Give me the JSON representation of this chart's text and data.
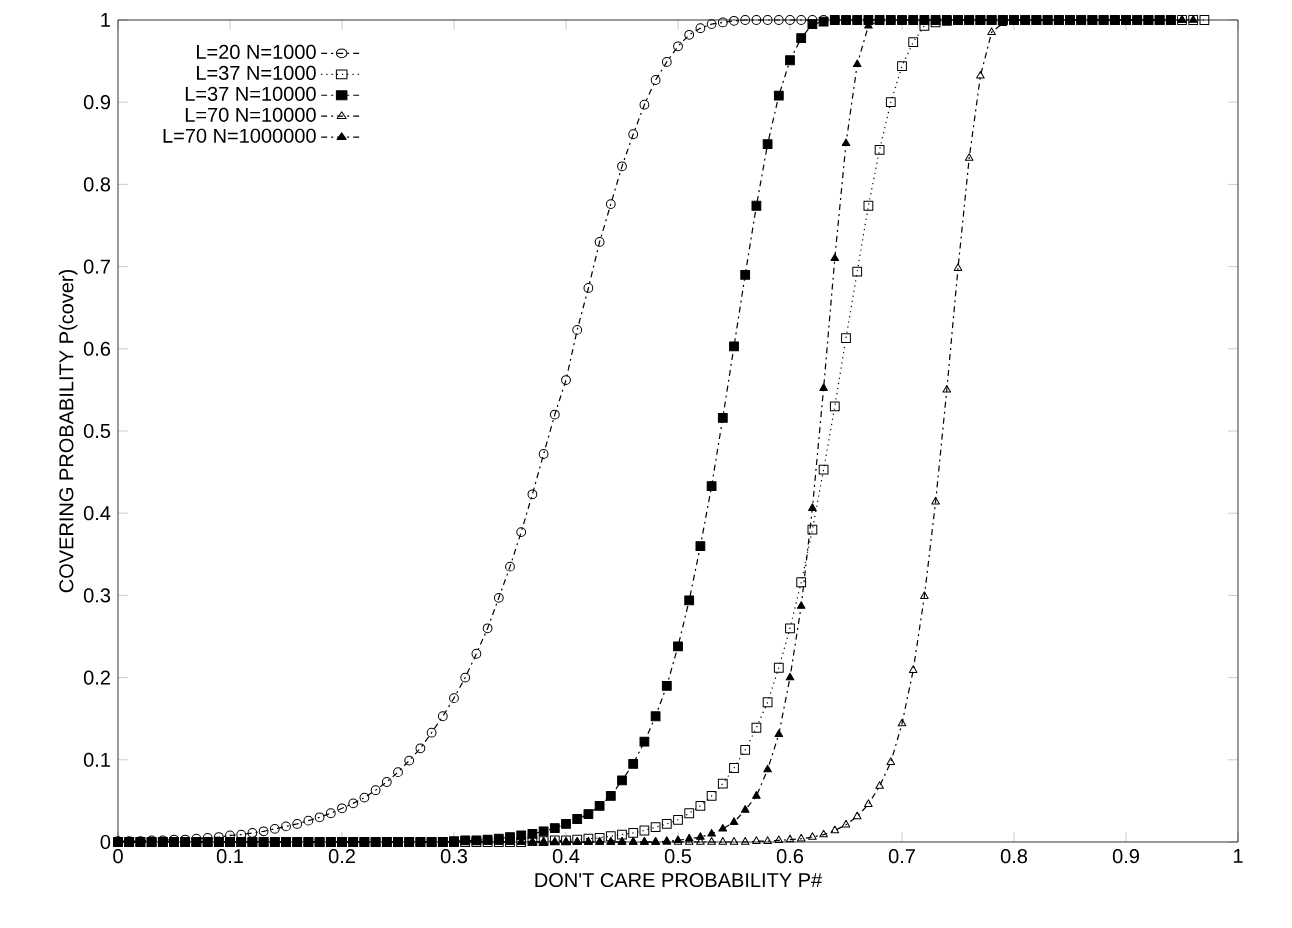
{
  "chart_data": {
    "type": "line",
    "xlabel": "DON'T CARE PROBABILITY P#",
    "ylabel": "COVERING PROBABILITY P(cover)",
    "x": [
      0,
      0.01,
      0.02,
      0.03,
      0.04,
      0.05,
      0.06,
      0.07,
      0.08,
      0.09,
      0.1,
      0.11,
      0.12,
      0.13,
      0.14,
      0.15,
      0.16,
      0.17,
      0.18,
      0.19,
      0.2,
      0.21,
      0.22,
      0.23,
      0.24,
      0.25,
      0.26,
      0.27,
      0.28,
      0.29,
      0.3,
      0.31,
      0.32,
      0.33,
      0.34,
      0.35,
      0.36,
      0.37,
      0.38,
      0.39,
      0.4,
      0.41,
      0.42,
      0.43,
      0.44,
      0.45,
      0.46,
      0.47,
      0.48,
      0.49,
      0.5,
      0.51,
      0.52,
      0.53,
      0.54,
      0.55,
      0.56,
      0.57,
      0.58,
      0.59,
      0.6,
      0.61,
      0.62,
      0.63,
      0.64,
      0.65,
      0.66,
      0.67,
      0.68,
      0.69,
      0.7,
      0.71,
      0.72,
      0.73,
      0.74,
      0.75,
      0.76,
      0.77,
      0.78,
      0.79,
      0.8,
      0.81,
      0.82,
      0.83,
      0.84,
      0.85,
      0.86,
      0.87,
      0.88,
      0.89,
      0.9,
      0.91,
      0.92,
      0.93,
      0.94,
      0.95,
      0.96,
      0.97
    ],
    "series": [
      {
        "name": "L=20 N=1000",
        "color": "#000000",
        "marker": "circle",
        "line_style": "dashed",
        "values": [
          0.001,
          0.001,
          0.001,
          0.002,
          0.002,
          0.003,
          0.003,
          0.004,
          0.005,
          0.006,
          0.008,
          0.009,
          0.011,
          0.013,
          0.016,
          0.019,
          0.022,
          0.026,
          0.03,
          0.035,
          0.041,
          0.047,
          0.054,
          0.063,
          0.073,
          0.085,
          0.099,
          0.114,
          0.133,
          0.153,
          0.175,
          0.2,
          0.229,
          0.26,
          0.297,
          0.335,
          0.377,
          0.423,
          0.472,
          0.52,
          0.562,
          0.623,
          0.674,
          0.73,
          0.776,
          0.822,
          0.861,
          0.897,
          0.927,
          0.949,
          0.968,
          0.982,
          0.99,
          0.995,
          0.997,
          0.999,
          1,
          1,
          1,
          1,
          1,
          1,
          1,
          1,
          1,
          1,
          1,
          1,
          1,
          1,
          1,
          1,
          1,
          1,
          1,
          1,
          1,
          1,
          1,
          1,
          1,
          1,
          1,
          1,
          1,
          1,
          1,
          1,
          1,
          1,
          1,
          1,
          1,
          1,
          null,
          null,
          null,
          null
        ]
      },
      {
        "name": "L=37 N=1000",
        "color": "#000000",
        "marker": "square",
        "line_style": "dotted",
        "values": [
          0,
          0,
          0,
          0,
          0,
          0,
          0,
          0,
          0,
          0,
          0,
          0,
          0,
          0,
          0,
          0,
          0,
          0,
          0,
          0,
          0,
          0,
          0,
          0,
          0,
          0,
          0,
          0,
          0,
          0,
          0,
          0,
          0,
          0,
          0,
          0,
          0,
          0.001,
          0.001,
          0.002,
          0.002,
          0.003,
          0.004,
          0.005,
          0.007,
          0.009,
          0.011,
          0.014,
          0.018,
          0.022,
          0.027,
          0.035,
          0.044,
          0.056,
          0.071,
          0.09,
          0.112,
          0.139,
          0.17,
          0.212,
          0.26,
          0.316,
          0.38,
          0.453,
          0.53,
          0.613,
          0.694,
          0.774,
          0.842,
          0.9,
          0.944,
          0.973,
          0.993,
          0.997,
          0.999,
          1,
          1,
          1,
          1,
          1,
          1,
          1,
          1,
          1,
          1,
          1,
          1,
          1,
          1,
          1,
          1,
          1,
          1,
          1,
          1,
          1,
          1,
          1
        ]
      },
      {
        "name": "L=37 N=10000",
        "color": "#000000",
        "marker": "square",
        "line_style": "dashed",
        "values": [
          0,
          0,
          0,
          0,
          0,
          0,
          0,
          0,
          0,
          0,
          0,
          0,
          0,
          0,
          0,
          0,
          0,
          0,
          0,
          0,
          0,
          0,
          0,
          0,
          0,
          0,
          0,
          0,
          0,
          0,
          0.001,
          0.002,
          0.002,
          0.003,
          0.004,
          0.006,
          0.008,
          0.01,
          0.013,
          0.017,
          0.022,
          0.028,
          0.034,
          0.044,
          0.056,
          0.075,
          0.095,
          0.122,
          0.153,
          0.19,
          0.238,
          0.294,
          0.36,
          0.433,
          0.516,
          0.603,
          0.69,
          0.774,
          0.849,
          0.908,
          0.951,
          0.978,
          0.995,
          0.998,
          1,
          1,
          1,
          1,
          1,
          1,
          1,
          1,
          1,
          1,
          1,
          1,
          1,
          1,
          1,
          1,
          1,
          1,
          1,
          1,
          1,
          1,
          1,
          1,
          1,
          1,
          1,
          1,
          1,
          1,
          1,
          null,
          null,
          null
        ]
      },
      {
        "name": "L=70 N=10000",
        "color": "#000000",
        "marker": "triangle",
        "line_style": "dashed",
        "values": [
          0,
          0,
          0,
          0,
          0,
          0,
          0,
          0,
          0,
          0,
          0,
          0,
          0,
          0,
          0,
          0,
          0,
          0,
          0,
          0,
          0,
          0,
          0,
          0,
          0,
          0,
          0,
          0,
          0,
          0,
          0,
          0,
          0,
          0,
          0,
          0,
          0,
          0,
          0,
          0,
          0,
          0,
          0,
          0,
          0,
          0,
          0,
          0,
          0,
          0,
          0,
          0,
          0,
          0,
          0,
          0,
          0,
          0.001,
          0.001,
          0.002,
          0.003,
          0.004,
          0.006,
          0.009,
          0.014,
          0.021,
          0.031,
          0.046,
          0.068,
          0.097,
          0.144,
          0.209,
          0.299,
          0.414,
          0.55,
          0.698,
          0.832,
          0.932,
          0.985,
          0.996,
          0.999,
          1,
          1,
          1,
          1,
          1,
          1,
          1,
          1,
          1,
          1,
          1,
          1,
          1,
          1,
          1,
          null,
          null
        ]
      },
      {
        "name": "L=70 N=1000000",
        "color": "#000000",
        "marker": "triangle",
        "line_style": "dashed",
        "values": [
          0,
          0,
          0,
          0,
          0,
          0,
          0,
          0,
          0,
          0,
          0,
          0,
          0,
          0,
          0,
          0,
          0,
          0,
          0,
          0,
          0,
          0,
          0,
          0,
          0,
          0,
          0,
          0,
          0,
          0,
          0,
          0,
          0,
          0,
          0,
          0,
          0,
          0,
          0,
          0,
          0,
          0,
          0,
          0,
          0,
          0,
          0,
          0,
          0,
          0.001,
          0.002,
          0.004,
          0.006,
          0.01,
          0.016,
          0.024,
          0.039,
          0.056,
          0.088,
          0.131,
          0.2,
          0.287,
          0.406,
          0.552,
          0.71,
          0.85,
          0.946,
          0.993,
          0.999,
          1,
          1,
          1,
          1,
          1,
          1,
          1,
          1,
          1,
          1,
          1,
          1,
          1,
          1,
          1,
          1,
          1,
          1,
          1,
          1,
          1,
          1,
          1,
          1,
          1,
          1,
          1,
          1,
          null
        ]
      }
    ],
    "xlim": [
      0,
      1
    ],
    "ylim": [
      0,
      1
    ],
    "xticks": [
      0,
      0.1,
      0.2,
      0.3,
      0.4,
      0.5,
      0.6,
      0.7,
      0.8,
      0.9,
      1
    ],
    "yticks": [
      0,
      0.1,
      0.2,
      0.3,
      0.4,
      0.5,
      0.6,
      0.7,
      0.8,
      0.9,
      1
    ],
    "grid": false,
    "legend": "top left"
  }
}
